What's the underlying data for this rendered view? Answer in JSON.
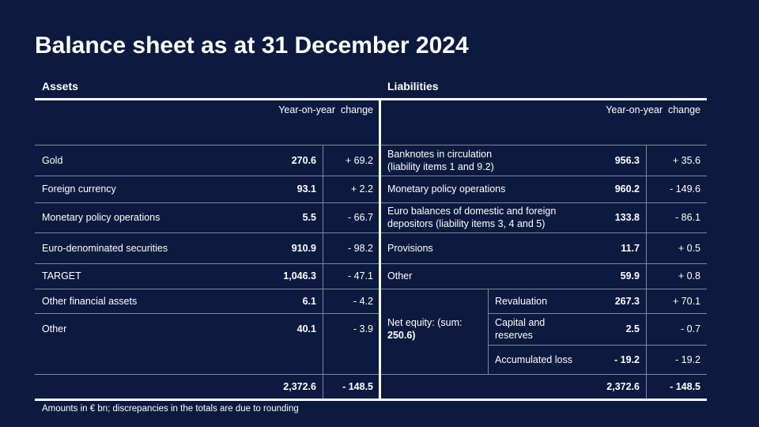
{
  "title": "Balance sheet as at 31 December 2024",
  "assets": {
    "heading": "Assets",
    "change_heading": "Year-on-year  change",
    "rows": [
      {
        "label": "Gold",
        "value": "270.6",
        "change": "+ 69.2"
      },
      {
        "label": "Foreign currency",
        "value": "93.1",
        "change": "+ 2.2"
      },
      {
        "label": "Monetary policy operations",
        "value": "5.5",
        "change": "- 66.7"
      },
      {
        "label": "Euro-denominated  securities",
        "value": "910.9",
        "change": "- 98.2"
      },
      {
        "label": "TARGET",
        "value": "1,046.3",
        "change": "- 47.1"
      },
      {
        "label": "Other financial assets",
        "value": "6.1",
        "change": "- 4.2"
      },
      {
        "label": "Other",
        "value": "40.1",
        "change": "- 3.9"
      }
    ],
    "total": {
      "value": "2,372.6",
      "change": "- 148.5"
    }
  },
  "liabilities": {
    "heading": "Liabilities",
    "change_heading": "Year-on-year  change",
    "rows": [
      {
        "label": "Banknotes in circulation\n(liability items 1 and 9.2)",
        "value": "956.3",
        "change": "+ 35.6"
      },
      {
        "label": "Monetary policy operations",
        "value": "960.2",
        "change": "- 149.6"
      },
      {
        "label": "Euro balances of domestic and foreign\ndepositors (liability items 3, 4 and 5)",
        "value": "133.8",
        "change": "- 86.1"
      },
      {
        "label": "Provisions",
        "value": "11.7",
        "change": "+ 0.5"
      },
      {
        "label": "Other",
        "value": "59.9",
        "change": "+ 0.8"
      }
    ],
    "net_equity": {
      "label": "Net equity: (sum:",
      "sum": "250.6)",
      "rows": [
        {
          "label": "Revaluation",
          "value": "267.3",
          "change": "+ 70.1"
        },
        {
          "label": "Capital and\nreserves",
          "value": "2.5",
          "change": "- 0.7"
        },
        {
          "label": "Accumulated loss",
          "value": "- 19.2",
          "change": "- 19.2"
        }
      ]
    },
    "total": {
      "value": "2,372.6",
      "change": "- 148.5"
    }
  },
  "footnote": "Amounts in € bn; discrepancies in the totals are due to rounding"
}
